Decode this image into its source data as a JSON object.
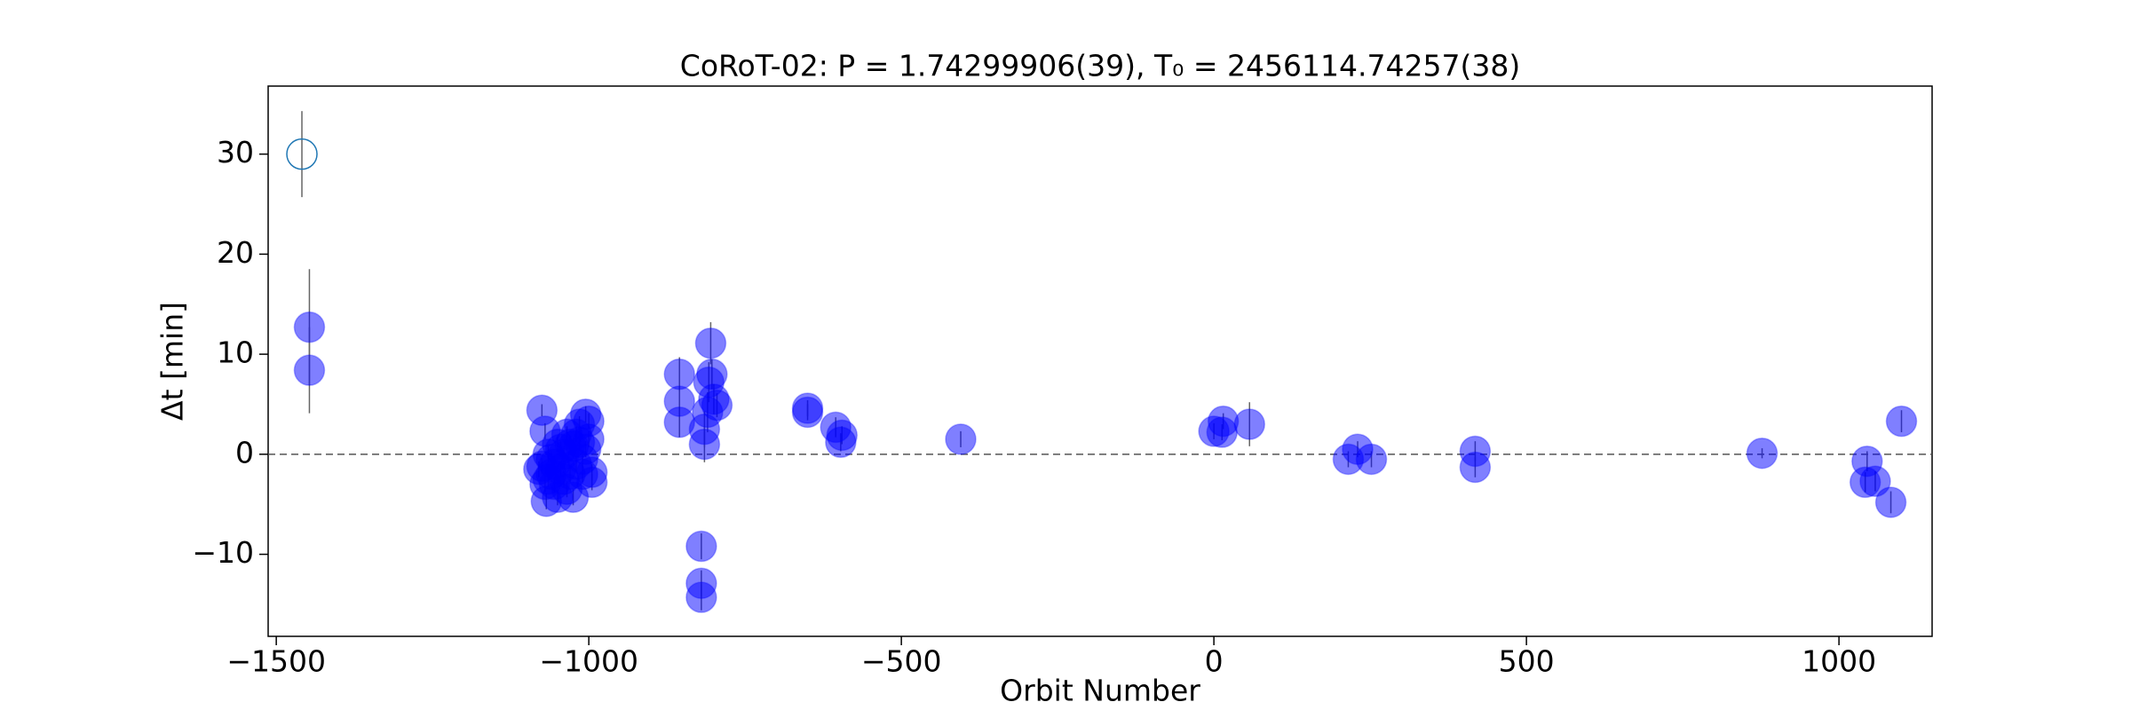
{
  "chart_data": {
    "type": "scatter",
    "title": "CoRoT-02: P = 1.74299906(39), T₀ = 2456114.74257(38)",
    "x_label": "Orbit Number",
    "y_label": "Δt [min]",
    "xlim": [
      -1513,
      1149
    ],
    "ylim": [
      -18.2,
      36.8
    ],
    "xticks": [
      {
        "value": -1500,
        "label": "−1500"
      },
      {
        "value": -1000,
        "label": "−1000"
      },
      {
        "value": -500,
        "label": "−500"
      },
      0,
      500,
      1000
    ],
    "yticks": [
      {
        "value": -10,
        "label": "−10"
      },
      0,
      10,
      20,
      30
    ],
    "hline": 0,
    "error_color": "#666666",
    "series": [
      {
        "marker": "open",
        "color": "#1f77b4",
        "x": [
          -1459
        ],
        "values": [
          30
        ],
        "errors": [
          4.3
        ]
      },
      {
        "marker": "filled",
        "color": "#0000ff",
        "x": [
          -1447,
          -1447,
          -1075,
          -1070,
          -1075,
          -1068,
          -1065,
          -1060,
          -1055,
          -1050,
          -1045,
          -1040,
          -1035,
          -1030,
          -1025,
          -1020,
          -1015,
          -1010,
          -1005,
          -1000,
          -995,
          -995,
          -1000,
          -1005,
          -1010,
          -1015,
          -1020,
          -1025,
          -1030,
          -1035,
          -1040,
          -1045,
          -1050,
          -1055,
          -1060,
          -1065,
          -1070,
          -1080,
          -855,
          -855,
          -855,
          -820,
          -820,
          -820,
          -815,
          -815,
          -810,
          -808,
          -805,
          -803,
          -800,
          -795,
          -650,
          -650,
          -605,
          -595,
          -597,
          -405,
          0,
          13,
          15,
          57,
          215,
          230,
          252,
          418,
          418,
          877,
          1045,
          1042,
          1058,
          1083,
          1100
        ],
        "values": [
          12.7,
          8.4,
          4.4,
          2.3,
          -1.2,
          -4.7,
          -2.5,
          -0.5,
          -3,
          -4.3,
          -1.5,
          0,
          -3.5,
          1,
          -4.3,
          2,
          3,
          -2,
          4,
          3.3,
          -2.8,
          -1.8,
          1.5,
          0.5,
          -0.5,
          1.2,
          -1,
          0.8,
          -2,
          2,
          -2.5,
          0.5,
          1,
          -1,
          -2,
          0,
          -3,
          -1.5,
          8,
          5.3,
          3.2,
          -9.2,
          -12.9,
          -14.3,
          1,
          2.5,
          4.2,
          7.2,
          11.1,
          8,
          5.5,
          4.9,
          4.6,
          4.2,
          2.7,
          1.9,
          1.2,
          1.5,
          2.3,
          2.2,
          3.3,
          3,
          -0.5,
          0.5,
          -0.5,
          0.3,
          -1.3,
          0.1,
          -0.7,
          -2.8,
          -2.7,
          -4.8,
          3.3
        ],
        "errors": [
          5.8,
          4.3,
          0.6,
          0.8,
          0.8,
          0.8,
          0.8,
          0.8,
          0.8,
          0.8,
          0.8,
          0.8,
          0.8,
          0.8,
          0.8,
          0.8,
          0.8,
          0.8,
          0.8,
          0.8,
          0.8,
          0.8,
          0.8,
          0.8,
          0.8,
          0.8,
          0.8,
          0.8,
          0.8,
          0.8,
          0.8,
          0.8,
          0.8,
          0.8,
          0.8,
          0.8,
          0.8,
          0.8,
          1.7,
          1.5,
          1.5,
          1.3,
          1.3,
          1.3,
          1.8,
          1.8,
          2,
          2,
          2.1,
          1.5,
          1.5,
          1.2,
          0.8,
          0.8,
          1,
          0.9,
          0.9,
          0.8,
          0.8,
          0.8,
          0.8,
          2.2,
          0.8,
          0.8,
          0.8,
          1,
          1,
          0.5,
          1,
          1,
          1,
          1.1,
          1.1
        ]
      }
    ]
  }
}
